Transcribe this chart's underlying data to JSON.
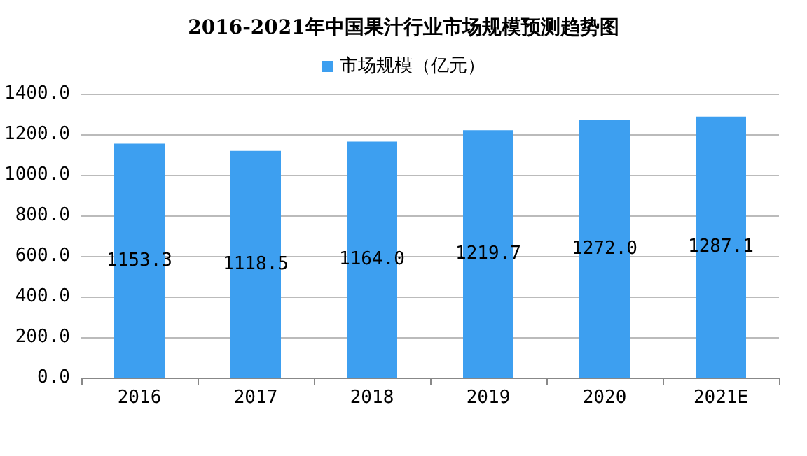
{
  "chart_data": {
    "type": "bar",
    "title": "2016-2021年中国果汁行业市场规模预测趋势图",
    "categories": [
      "2016",
      "2017",
      "2018",
      "2019",
      "2020",
      "2021E"
    ],
    "series": [
      {
        "name": "市场规模（亿元）",
        "color": "#3d9ff0",
        "values": [
          1153.3,
          1118.5,
          1164.0,
          1219.7,
          1272.0,
          1287.1
        ],
        "value_labels": [
          "1153.3",
          "1118.5",
          "1164.0",
          "1219.7",
          "1272.0",
          "1287.1"
        ]
      }
    ],
    "ylim": [
      0,
      1400
    ],
    "yticks": [
      {
        "value": 0,
        "label": "0.0"
      },
      {
        "value": 200,
        "label": "200.0"
      },
      {
        "value": 400,
        "label": "400.0"
      },
      {
        "value": 600,
        "label": "600.0"
      },
      {
        "value": 800,
        "label": "800.0"
      },
      {
        "value": 1000,
        "label": "1000.0"
      },
      {
        "value": 1200,
        "label": "1200.0"
      },
      {
        "value": 1400,
        "label": "1400.0"
      }
    ],
    "grid": "y",
    "legend": "top"
  }
}
